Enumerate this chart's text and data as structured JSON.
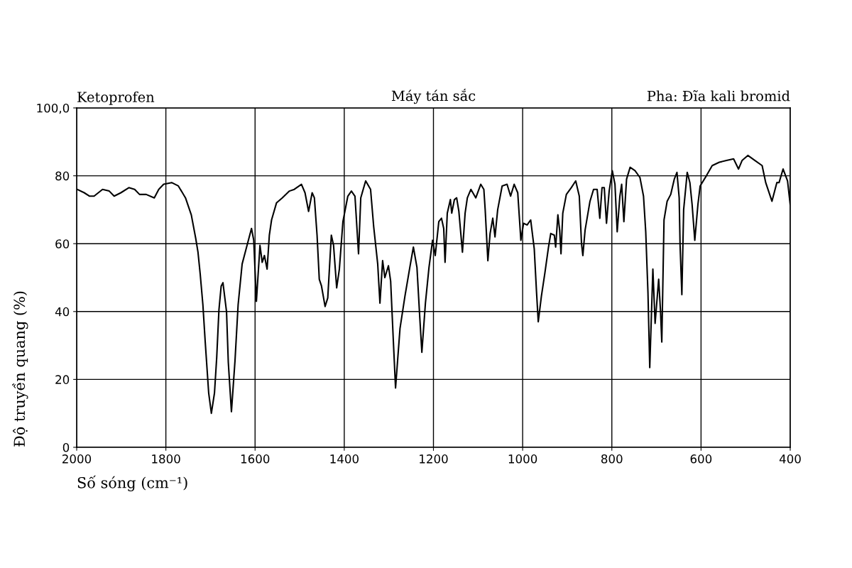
{
  "chart_data": {
    "type": "line",
    "title": "Ketoprofen",
    "annotations": [
      "Máy tán sắc",
      "Pha: Đĩa kali bromid"
    ],
    "xlabel": "Số sóng (cm⁻¹)",
    "ylabel": "Độ truyền quang (%)",
    "xlim": [
      2000,
      400
    ],
    "xticks": [
      2000,
      1800,
      1600,
      1400,
      1200,
      1000,
      800,
      600,
      400
    ],
    "ylim": [
      0,
      100
    ],
    "yticks": [
      0,
      20,
      40,
      60,
      80,
      {
        "value": 100,
        "label": "100,0"
      }
    ],
    "grid": true,
    "line_style": "solid",
    "x": [
      1999,
      1983,
      1971,
      1961,
      1942,
      1927,
      1916,
      1901,
      1883,
      1870,
      1859,
      1844,
      1826,
      1816,
      1805,
      1787,
      1772,
      1756,
      1743,
      1733,
      1728,
      1723,
      1717,
      1712,
      1704,
      1698,
      1691,
      1686,
      1681,
      1676,
      1672,
      1664,
      1660,
      1653,
      1645,
      1638,
      1629,
      1621,
      1608,
      1603,
      1597,
      1589,
      1584,
      1579,
      1573,
      1568,
      1563,
      1552,
      1539,
      1523,
      1512,
      1496,
      1488,
      1480,
      1472,
      1467,
      1461,
      1456,
      1451,
      1443,
      1437,
      1429,
      1424,
      1417,
      1411,
      1403,
      1392,
      1384,
      1376,
      1368,
      1363,
      1352,
      1341,
      1334,
      1325,
      1320,
      1314,
      1309,
      1301,
      1296,
      1290,
      1285,
      1275,
      1264,
      1253,
      1245,
      1237,
      1231,
      1226,
      1218,
      1210,
      1202,
      1196,
      1188,
      1182,
      1177,
      1174,
      1169,
      1162,
      1159,
      1153,
      1148,
      1143,
      1135,
      1129,
      1124,
      1116,
      1105,
      1094,
      1087,
      1084,
      1078,
      1073,
      1067,
      1062,
      1056,
      1046,
      1035,
      1027,
      1019,
      1011,
      1004,
      998,
      990,
      982,
      974,
      969,
      965,
      958,
      950,
      942,
      937,
      929,
      926,
      921,
      917,
      914,
      910,
      902,
      891,
      881,
      873,
      868,
      865,
      860,
      849,
      841,
      833,
      827,
      822,
      817,
      812,
      806,
      799,
      793,
      788,
      782,
      778,
      773,
      767,
      759,
      748,
      737,
      729,
      724,
      719,
      715,
      708,
      703,
      695,
      691,
      688,
      683,
      676,
      668,
      660,
      654,
      649,
      647,
      643,
      639,
      631,
      625,
      620,
      614,
      607,
      602,
      588,
      575,
      559,
      543,
      527,
      516,
      508,
      495,
      479,
      463,
      455,
      441,
      430,
      425,
      416,
      406,
      400
    ],
    "series": [
      {
        "color": "#000000",
        "values": [
          76,
          75,
          74,
          74,
          76,
          75.5,
          74,
          75,
          76.5,
          76,
          74.5,
          74.5,
          73.5,
          76,
          77.5,
          78,
          77,
          73.5,
          68.5,
          61.5,
          57.5,
          51,
          42,
          31.5,
          16,
          10,
          16,
          26.5,
          40.5,
          47.5,
          48.5,
          40,
          25,
          10.5,
          25.5,
          42,
          54,
          58,
          64.5,
          61,
          43,
          59.5,
          54.5,
          56.5,
          52.5,
          62.5,
          67,
          72,
          73.5,
          75.5,
          76,
          77.5,
          75,
          69.5,
          75,
          73.5,
          62.5,
          49.5,
          47.5,
          41.5,
          44,
          62.5,
          59.5,
          47,
          52.5,
          66.5,
          74,
          75.5,
          74,
          57,
          73.5,
          78.5,
          76,
          65,
          54,
          42.5,
          55,
          50,
          53.5,
          49,
          31.5,
          17.5,
          35,
          44.5,
          53,
          59,
          53,
          39,
          28,
          42.5,
          53,
          61,
          56.5,
          66.5,
          67.5,
          64.5,
          54.5,
          69,
          73,
          69,
          73,
          73.5,
          69.5,
          57.5,
          69,
          73.5,
          76,
          73.5,
          77.5,
          76,
          70,
          55,
          63,
          67.5,
          62,
          70,
          77,
          77.5,
          74,
          77.5,
          75,
          61,
          66,
          65.5,
          67,
          58.5,
          46,
          37,
          44.5,
          51.5,
          59,
          63,
          62.5,
          59,
          68.5,
          64,
          57,
          69,
          74.5,
          76.5,
          78.5,
          74,
          60,
          56.5,
          64,
          72.5,
          76,
          76,
          67.5,
          76.5,
          76.5,
          66,
          75.5,
          81.5,
          77.5,
          63.5,
          74,
          77.5,
          66.5,
          79,
          82.5,
          81.5,
          79.5,
          74,
          63.5,
          45.5,
          23.5,
          52.5,
          36.5,
          49.5,
          40.5,
          31,
          67,
          72.5,
          74.5,
          79,
          81,
          73.5,
          59.5,
          45,
          70,
          81,
          78,
          71.5,
          61,
          71.5,
          77,
          80,
          83,
          84,
          84.5,
          85,
          82,
          84.5,
          86,
          84.5,
          83,
          78,
          72.5,
          78,
          78,
          82,
          78.5,
          71.5
        ]
      }
    ]
  }
}
